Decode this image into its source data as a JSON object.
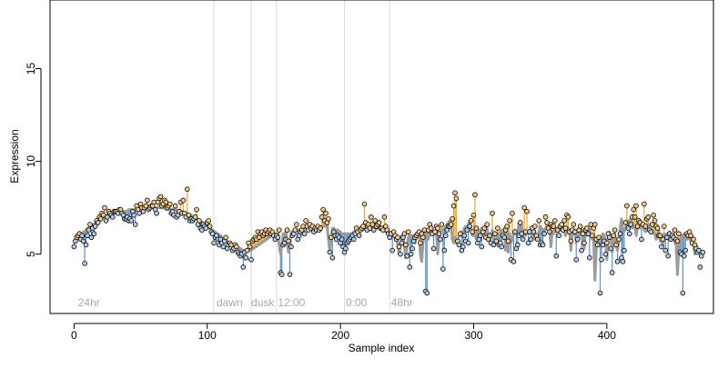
{
  "chart_data": {
    "type": "scatter",
    "xlabel": "Sample index",
    "ylabel": "Expression",
    "xlim": [
      -18,
      480
    ],
    "ylim": [
      1.8,
      18.7
    ],
    "x_ticks": [
      0,
      100,
      200,
      300,
      400
    ],
    "y_ticks": [
      5,
      10,
      15
    ],
    "grid": false,
    "legend": "none",
    "colors": {
      "fit_line": "#9b9b9b",
      "residual_up": "#f0a32a",
      "residual_down": "#5b8fcf",
      "point_fill_up": "#f5c98a",
      "point_fill_down": "#b5cbe6",
      "vline": "#dcdcdc",
      "annotation": "#a8a8a8"
    },
    "vlines": [
      105,
      133,
      152,
      203,
      237
    ],
    "annotations": [
      {
        "x": 3,
        "label": "24hr"
      },
      {
        "x": 107,
        "label": "dawn"
      },
      {
        "x": 133,
        "label": "dusk"
      },
      {
        "x": 153,
        "label": "12:00"
      },
      {
        "x": 204,
        "label": "0:00"
      },
      {
        "x": 238,
        "label": "48hr"
      }
    ],
    "series": [
      {
        "values": [
          5.4,
          5.7,
          5.9,
          6.0,
          6.1,
          5.8,
          6.0,
          5.7,
          4.5,
          5.5,
          6.0,
          6.3,
          6.6,
          5.9,
          6.4,
          6.1,
          6.5,
          6.8,
          6.7,
          7.0,
          6.9,
          7.2,
          7.1,
          7.5,
          6.8,
          7.0,
          7.3,
          7.2,
          7.1,
          7.0,
          7.3,
          7.3,
          7.3,
          7.2,
          7.4,
          7.4,
          7.2,
          7.1,
          6.9,
          6.9,
          7.0,
          6.8,
          6.9,
          6.8,
          7.3,
          7.1,
          6.6,
          7.6,
          7.4,
          7.2,
          7.7,
          7.5,
          7.3,
          7.5,
          7.6,
          7.9,
          7.4,
          7.5,
          7.6,
          7.6,
          7.8,
          7.4,
          7.2,
          7.8,
          8.0,
          8.1,
          7.6,
          7.7,
          7.9,
          7.8,
          7.5,
          7.6,
          7.7,
          7.2,
          7.3,
          7.1,
          7.6,
          7.0,
          7.1,
          7.3,
          7.8,
          7.2,
          7.9,
          7.2,
          7.0,
          8.5,
          7.1,
          6.8,
          6.9,
          6.8,
          6.9,
          7.0,
          7.4,
          6.6,
          6.8,
          6.4,
          6.3,
          6.6,
          6.5,
          6.4,
          6.7,
          6.8,
          6.5,
          6.2,
          6.1,
          5.6,
          5.9,
          6.0,
          5.8,
          5.5,
          5.8,
          5.6,
          5.4,
          5.7,
          5.9,
          5.3,
          5.5,
          5.6,
          5.5,
          5.2,
          5.3,
          5.5,
          5.4,
          5.1,
          5.0,
          4.9,
          5.0,
          4.3,
          5.1,
          4.8,
          5.2,
          5.6,
          5.4,
          4.7,
          5.7,
          5.8,
          5.9,
          5.8,
          6.2,
          5.9,
          6.1,
          6.2,
          6.0,
          6.1,
          6.3,
          6.1,
          6.2,
          6.3,
          6.1,
          6.2,
          6.0,
          5.8,
          6.0,
          5.9,
          6.3,
          4.0,
          3.9,
          5.5,
          5.6,
          5.8,
          6.3,
          5.7,
          3.9,
          5.4,
          6.0,
          6.1,
          6.3,
          6.6,
          5.8,
          6.0,
          6.2,
          6.3,
          6.5,
          6.1,
          6.8,
          6.5,
          6.3,
          6.6,
          6.4,
          6.5,
          6.2,
          6.4,
          6.3,
          6.5,
          6.3,
          6.4,
          7.0,
          7.4,
          6.8,
          7.2,
          6.7,
          6.9,
          5.1,
          5.9,
          4.8,
          6.2,
          6.0,
          5.8,
          6.0,
          5.9,
          5.6,
          5.8,
          5.4,
          5.1,
          5.3,
          5.6,
          5.7,
          5.8,
          5.9,
          6.0,
          5.8,
          6.1,
          6.4,
          6.2,
          6.0,
          6.3,
          6.4,
          6.5,
          7.7,
          6.7,
          6.3,
          6.6,
          6.4,
          7.0,
          6.6,
          6.3,
          6.8,
          6.5,
          6.6,
          6.7,
          6.4,
          6.4,
          6.3,
          7.0,
          6.5,
          6.3,
          6.1,
          5.9,
          6.1,
          5.2,
          6.2,
          6.0,
          5.8,
          5.9,
          5.4,
          5.0,
          5.6,
          5.9,
          6.1,
          5.5,
          4.9,
          6.2,
          4.3,
          5.0,
          5.3,
          5.7,
          5.9,
          6.0,
          6.1,
          6.2,
          5.6,
          6.1,
          5.9,
          6.3,
          3.0,
          2.9,
          6.3,
          6.6,
          6.4,
          6.1,
          5.3,
          6.2,
          6.5,
          6.4,
          6.1,
          5.8,
          6.6,
          4.2,
          5.2,
          6.0,
          6.3,
          6.5,
          6.5,
          6.6,
          6.9,
          7.6,
          8.3,
          8.0,
          5.7,
          5.5,
          6.1,
          5.2,
          5.4,
          6.0,
          5.7,
          6.3,
          5.6,
          6.5,
          6.8,
          6.2,
          7.1,
          8.2,
          6.4,
          5.6,
          5.8,
          6.0,
          5.4,
          6.2,
          6.4,
          5.9,
          6.6,
          5.8,
          6.0,
          5.6,
          7.2,
          5.5,
          6.1,
          5.7,
          6.4,
          5.5,
          5.6,
          5.4,
          6.0,
          5.9,
          6.3,
          6.5,
          5.7,
          6.8,
          4.7,
          7.2,
          4.6,
          6.2,
          5.3,
          5.5,
          6.0,
          6.7,
          6.1,
          5.8,
          7.5,
          6.2,
          7.3,
          5.6,
          6.2,
          5.8,
          6.4,
          6.2,
          6.5,
          6.0,
          5.8,
          6.8,
          5.5,
          5.6,
          5.5,
          6.1,
          7.0,
          6.7,
          6.4,
          6.2,
          6.6,
          6.5,
          6.5,
          6.8,
          4.9,
          6.3,
          6.0,
          6.5,
          6.6,
          6.3,
          6.8,
          6.4,
          7.1,
          7.0,
          6.2,
          5.7,
          6.3,
          6.6,
          6.2,
          4.7,
          5.8,
          6.3,
          6.5,
          5.2,
          6.1,
          5.6,
          6.3,
          6.4,
          6.1,
          4.8,
          6.6,
          6.0,
          6.4,
          6.6,
          5.8,
          5.5,
          5.9,
          2.9,
          4.7,
          5.5,
          5.7,
          5.0,
          5.6,
          6.1,
          5.9,
          5.3,
          4.0,
          6.0,
          6.3,
          5.5,
          4.6,
          5.8,
          6.1,
          4.8,
          4.6,
          5.2,
          6.7,
          7.6,
          6.4,
          6.1,
          6.6,
          7.0,
          7.4,
          7.0,
          7.6,
          6.5,
          6.8,
          6.7,
          5.8,
          6.6,
          7.7,
          6.5,
          6.9,
          7.0,
          6.3,
          6.2,
          6.6,
          7.1,
          6.8,
          6.5,
          6.4,
          6.0,
          6.0,
          5.4,
          5.8,
          6.5,
          5.2,
          5.9,
          4.9,
          6.1,
          5.8,
          6.0,
          5.9,
          6.3,
          5.8,
          5.7,
          6.1,
          5.1,
          5.0,
          2.9,
          4.9,
          5.2,
          6.1,
          6.0,
          6.2,
          6.0,
          5.6,
          5.8,
          5.5,
          5.3,
          5.1,
          5.2,
          4.3,
          4.9,
          5.1
        ],
        "fitted": [
          5.8,
          5.8,
          5.9,
          6.0,
          6.0,
          6.1,
          6.1,
          6.2,
          6.2,
          6.3,
          6.4,
          6.4,
          6.5,
          6.5,
          6.6,
          6.6,
          6.7,
          6.7,
          6.8,
          6.8,
          6.9,
          6.9,
          7.0,
          7.0,
          7.0,
          7.1,
          7.1,
          7.1,
          7.2,
          7.2,
          7.2,
          7.2,
          7.3,
          7.3,
          7.3,
          7.3,
          7.3,
          7.3,
          7.3,
          7.3,
          7.3,
          7.4,
          7.4,
          7.4,
          7.4,
          7.4,
          7.4,
          7.4,
          7.4,
          7.4,
          7.4,
          7.4,
          7.4,
          7.4,
          7.5,
          7.5,
          7.5,
          7.5,
          7.5,
          7.5,
          7.5,
          7.5,
          7.5,
          7.5,
          7.5,
          7.5,
          7.5,
          7.5,
          7.5,
          7.4,
          7.4,
          7.4,
          7.4,
          7.4,
          7.4,
          7.4,
          7.4,
          7.4,
          7.3,
          7.3,
          7.3,
          7.3,
          7.2,
          7.2,
          7.2,
          7.2,
          7.1,
          7.1,
          7.1,
          7.0,
          7.0,
          6.9,
          6.9,
          6.9,
          6.8,
          6.8,
          6.7,
          6.7,
          6.6,
          6.6,
          6.5,
          6.5,
          6.4,
          6.3,
          6.3,
          6.2,
          6.2,
          6.1,
          6.1,
          6.0,
          6.0,
          5.9,
          5.8,
          5.8,
          5.7,
          5.7,
          5.6,
          5.6,
          5.5,
          5.5,
          5.5,
          5.4,
          5.4,
          5.3,
          5.3,
          5.3,
          5.2,
          5.2,
          5.2,
          5.2,
          5.2,
          5.2,
          5.2,
          5.2,
          5.3,
          5.3,
          5.4,
          5.4,
          5.5,
          5.5,
          5.6,
          5.6,
          5.7,
          5.7,
          5.8,
          5.8,
          5.9,
          5.9,
          6.0,
          6.0,
          6.0,
          6.1,
          6.1,
          6.1,
          5.5,
          5.0,
          5.5,
          6.1,
          6.1,
          6.2,
          5.6,
          5.1,
          5.6,
          6.2,
          6.2,
          6.2,
          6.3,
          6.3,
          6.3,
          6.3,
          6.3,
          6.3,
          6.3,
          6.4,
          6.4,
          6.4,
          6.4,
          6.4,
          6.4,
          6.4,
          6.4,
          6.4,
          6.4,
          6.4,
          6.4,
          6.4,
          6.5,
          6.5,
          6.5,
          6.5,
          6.5,
          5.8,
          5.2,
          5.8,
          6.4,
          6.4,
          6.3,
          6.3,
          6.3,
          6.2,
          6.2,
          6.1,
          6.1,
          6.1,
          6.1,
          6.1,
          6.1,
          6.1,
          6.1,
          6.1,
          6.2,
          6.2,
          6.2,
          6.2,
          6.3,
          6.3,
          6.3,
          6.3,
          6.4,
          6.4,
          6.4,
          6.4,
          6.4,
          6.4,
          6.4,
          6.4,
          6.4,
          6.4,
          6.4,
          6.4,
          6.4,
          6.3,
          6.3,
          6.3,
          6.2,
          6.2,
          6.2,
          6.1,
          6.1,
          6.1,
          6.0,
          6.0,
          6.0,
          5.5,
          5.0,
          5.5,
          6.0,
          6.0,
          5.4,
          4.8,
          5.4,
          5.9,
          6.0,
          6.0,
          6.0,
          6.0,
          5.6,
          6.0,
          6.1,
          6.2,
          5.0,
          4.6,
          5.6,
          6.2,
          6.2,
          6.2,
          5.8,
          6.2,
          6.3,
          6.3,
          6.2,
          6.1,
          6.2,
          5.0,
          5.8,
          6.2,
          6.3,
          6.3,
          6.4,
          6.5,
          6.6,
          6.7,
          6.8,
          6.6,
          5.8,
          5.6,
          5.9,
          5.6,
          5.7,
          6.0,
          6.0,
          6.2,
          6.1,
          6.4,
          6.5,
          6.4,
          6.6,
          6.8,
          6.4,
          6.0,
          6.0,
          6.1,
          5.8,
          6.2,
          6.3,
          6.1,
          6.4,
          6.1,
          6.1,
          5.9,
          6.5,
          5.8,
          6.1,
          5.9,
          6.3,
          5.8,
          5.8,
          5.7,
          6.1,
          6.0,
          6.2,
          6.3,
          6.0,
          6.4,
          5.2,
          6.5,
          5.1,
          6.1,
          5.6,
          5.8,
          6.1,
          6.3,
          6.1,
          6.0,
          6.7,
          6.2,
          6.6,
          5.9,
          6.2,
          6.0,
          6.2,
          6.2,
          6.3,
          6.1,
          6.0,
          6.4,
          5.8,
          5.9,
          5.8,
          6.2,
          6.5,
          6.4,
          6.3,
          6.2,
          6.4,
          6.4,
          6.4,
          6.5,
          5.4,
          6.2,
          6.1,
          6.3,
          6.4,
          6.3,
          6.5,
          6.3,
          6.6,
          6.6,
          6.2,
          6.0,
          6.2,
          6.4,
          6.2,
          5.2,
          6.0,
          6.2,
          6.3,
          5.6,
          6.1,
          5.9,
          6.2,
          6.3,
          6.1,
          5.3,
          6.3,
          6.0,
          6.2,
          6.3,
          6.0,
          5.8,
          6.0,
          3.6,
          5.2,
          5.8,
          5.9,
          5.4,
          5.9,
          6.1,
          6.0,
          5.7,
          4.7,
          6.0,
          6.2,
          5.8,
          5.1,
          6.0,
          6.1,
          5.4,
          5.2,
          5.7,
          6.4,
          6.9,
          6.3,
          6.2,
          6.4,
          6.6,
          6.8,
          6.6,
          6.9,
          6.4,
          6.5,
          6.5,
          6.0,
          6.4,
          6.9,
          6.4,
          6.5,
          6.6,
          6.3,
          6.2,
          6.4,
          6.6,
          6.4,
          6.3,
          6.3,
          6.1,
          6.1,
          5.8,
          6.0,
          6.3,
          5.7,
          6.0,
          5.4,
          6.1,
          6.0,
          6.1,
          6.0,
          6.2,
          6.0,
          5.9,
          6.1,
          5.6,
          5.5,
          3.9,
          5.4,
          5.6,
          6.0,
          6.0,
          6.1,
          6.0,
          5.8,
          5.9,
          5.8,
          5.7,
          5.6,
          5.6,
          5.0,
          5.4,
          5.5
        ]
      }
    ]
  }
}
